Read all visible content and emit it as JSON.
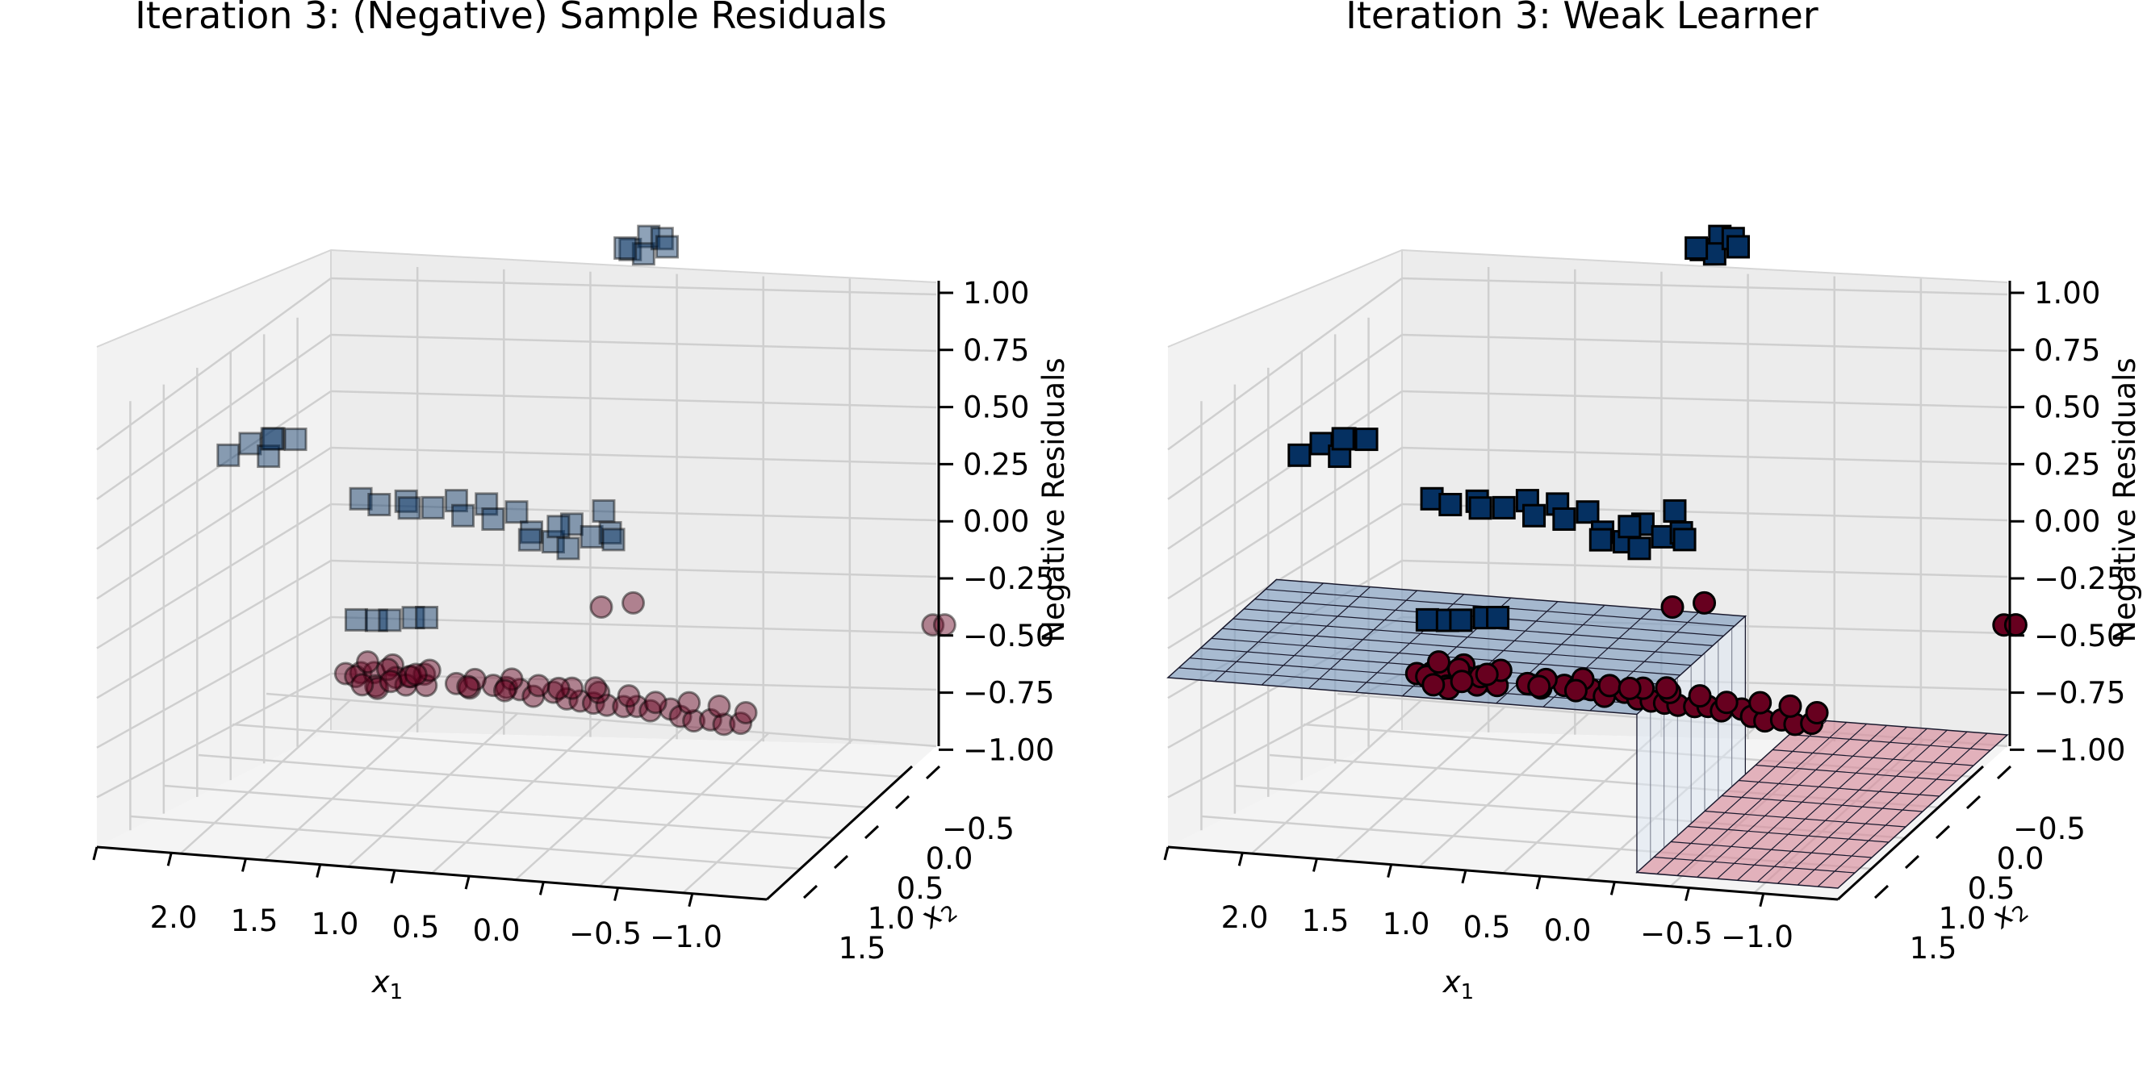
{
  "colors": {
    "negative_class": "#67001f",
    "positive_class": "#053061",
    "negative_surface": "#d98e9c",
    "positive_surface": "#7f9dbf",
    "pane": "#f2f2f2",
    "grid": "#cfcfcf"
  },
  "chart_data": [
    {
      "type": "scatter",
      "title": "Iteration 3: (Negative) Sample Residuals",
      "xlabel": "x1",
      "ylabel": "x2",
      "zlabel": "Negative Residuals",
      "xlim": [
        -1.5,
        2.5
      ],
      "ylim": [
        -1.0,
        1.5
      ],
      "zlim": [
        -1.0,
        1.0
      ],
      "x_ticks": [
        "2.0",
        "1.5",
        "1.0",
        "0.5",
        "0.0",
        "−0.5",
        "−1.0"
      ],
      "y_ticks": [
        "−0.5",
        "0.0",
        "0.5",
        "1.0",
        "1.5"
      ],
      "z_ticks": [
        "1.00",
        "0.75",
        "0.50",
        "0.25",
        "0.00",
        "−0.25",
        "−0.50",
        "−0.75",
        "−1.00"
      ],
      "transparent_markers": true,
      "series": [
        {
          "marker": "square",
          "class": "positive",
          "points": [
            [
              2.05,
              0.15,
              0.5
            ],
            [
              1.95,
              0.25,
              0.5
            ],
            [
              1.9,
              0.05,
              0.48
            ],
            [
              2.1,
              -0.05,
              0.5
            ],
            [
              1.8,
              0.2,
              0.52
            ],
            [
              2.0,
              0.35,
              0.47
            ],
            [
              1.45,
              0.3,
              0.25
            ],
            [
              1.3,
              0.2,
              0.26
            ],
            [
              1.2,
              0.35,
              0.24
            ],
            [
              1.1,
              0.15,
              0.27
            ],
            [
              1.0,
              0.25,
              0.25
            ],
            [
              0.9,
              0.35,
              0.26
            ],
            [
              0.8,
              0.2,
              0.24
            ],
            [
              0.7,
              0.3,
              0.27
            ],
            [
              0.6,
              0.15,
              0.25
            ],
            [
              0.5,
              0.25,
              0.26
            ],
            [
              0.35,
              0.1,
              0.22
            ],
            [
              0.3,
              -0.05,
              0.23
            ],
            [
              0.2,
              0.05,
              0.2
            ],
            [
              0.15,
              0.2,
              0.24
            ],
            [
              0.05,
              -0.1,
              0.22
            ],
            [
              -0.05,
              0.0,
              0.25
            ],
            [
              -0.1,
              0.15,
              0.23
            ],
            [
              -0.2,
              -0.05,
              0.26
            ],
            [
              0.0,
              0.3,
              0.28
            ],
            [
              0.25,
              0.25,
              0.21
            ],
            [
              -0.3,
              -0.05,
              1.55
            ],
            [
              -0.35,
              0.1,
              1.57
            ],
            [
              -0.4,
              -0.1,
              1.55
            ],
            [
              -0.45,
              0.05,
              1.58
            ],
            [
              -0.5,
              0.0,
              1.56
            ],
            [
              -0.25,
              0.0,
              1.54
            ],
            [
              1.7,
              0.85,
              -0.45
            ],
            [
              1.6,
              0.9,
              -0.46
            ],
            [
              1.5,
              0.85,
              -0.44
            ],
            [
              1.4,
              0.95,
              -0.45
            ],
            [
              1.3,
              0.9,
              -0.43
            ]
          ]
        },
        {
          "marker": "circle",
          "class": "negative",
          "points": [
            [
              1.5,
              0.2,
              -0.5
            ],
            [
              1.45,
              0.3,
              -0.52
            ],
            [
              1.4,
              0.1,
              -0.48
            ],
            [
              1.35,
              0.25,
              -0.5
            ],
            [
              1.3,
              0.15,
              -0.53
            ],
            [
              1.28,
              0.35,
              -0.49
            ],
            [
              1.25,
              0.05,
              -0.51
            ],
            [
              1.2,
              0.2,
              -0.5
            ],
            [
              1.15,
              0.3,
              -0.52
            ],
            [
              1.1,
              0.1,
              -0.5
            ],
            [
              1.05,
              0.25,
              -0.49
            ],
            [
              1.0,
              0.15,
              -0.51
            ],
            [
              1.35,
              0.45,
              -0.54
            ],
            [
              1.2,
              0.4,
              -0.55
            ],
            [
              1.1,
              0.45,
              -0.53
            ],
            [
              1.3,
              -0.05,
              -0.47
            ],
            [
              1.15,
              0.0,
              -0.46
            ],
            [
              1.45,
              0.4,
              -0.5
            ],
            [
              0.9,
              0.35,
              -0.55
            ],
            [
              0.8,
              0.3,
              -0.55
            ],
            [
              0.7,
              0.4,
              -0.56
            ],
            [
              0.6,
              0.35,
              -0.55
            ],
            [
              0.5,
              0.3,
              -0.54
            ],
            [
              0.4,
              0.25,
              -0.55
            ],
            [
              0.3,
              0.3,
              -0.54
            ],
            [
              0.2,
              0.25,
              -0.55
            ],
            [
              0.1,
              0.2,
              -0.54
            ],
            [
              0.0,
              0.15,
              -0.53
            ],
            [
              -0.1,
              0.1,
              -0.52
            ],
            [
              -0.2,
              0.1,
              -0.52
            ],
            [
              -0.3,
              0.05,
              -0.5
            ],
            [
              -0.4,
              0.0,
              -0.5
            ],
            [
              -0.5,
              0.05,
              -0.5
            ],
            [
              -0.6,
              -0.05,
              -0.5
            ],
            [
              -0.7,
              -0.1,
              -0.5
            ],
            [
              -0.8,
              -0.1,
              -0.49
            ],
            [
              -0.9,
              -0.15,
              -0.49
            ],
            [
              -1.0,
              -0.15,
              -0.48
            ],
            [
              0.85,
              0.5,
              -0.57
            ],
            [
              0.65,
              0.55,
              -0.57
            ],
            [
              0.45,
              0.45,
              -0.56
            ],
            [
              0.25,
              0.45,
              -0.56
            ],
            [
              0.05,
              0.35,
              -0.54
            ],
            [
              -0.15,
              0.3,
              -0.53
            ],
            [
              -0.35,
              0.2,
              -0.52
            ],
            [
              -0.55,
              0.2,
              -0.51
            ],
            [
              -0.75,
              0.15,
              -0.5
            ],
            [
              -0.95,
              0.05,
              -0.49
            ],
            [
              1.0,
              0.0,
              -0.42
            ],
            [
              0.75,
              0.15,
              -0.5
            ],
            [
              0.55,
              0.2,
              -0.52
            ],
            [
              0.35,
              0.5,
              -0.58
            ],
            [
              0.15,
              0.55,
              -0.58
            ],
            [
              0.5,
              1.5,
              -0.5
            ],
            [
              0.35,
              1.6,
              -0.5
            ],
            [
              -1.5,
              1.45,
              -0.45
            ],
            [
              -1.55,
              1.5,
              -0.46
            ]
          ]
        }
      ],
      "surfaces": []
    },
    {
      "type": "scatter",
      "title": "Iteration 3: Weak Learner",
      "xlabel": "x1",
      "ylabel": "x2",
      "zlabel": "Negative Residuals",
      "xlim": [
        -1.5,
        2.5
      ],
      "ylim": [
        -1.0,
        1.5
      ],
      "zlim": [
        -1.0,
        1.0
      ],
      "x_ticks": [
        "2.0",
        "1.5",
        "1.0",
        "0.5",
        "0.0",
        "−0.5",
        "−1.0"
      ],
      "y_ticks": [
        "−0.5",
        "0.0",
        "0.5",
        "1.0",
        "1.5"
      ],
      "z_ticks": [
        "1.00",
        "0.75",
        "0.50",
        "0.25",
        "0.00",
        "−0.25",
        "−0.50",
        "−0.75",
        "−1.00"
      ],
      "transparent_markers": false,
      "series": [
        {
          "marker": "square",
          "class": "positive",
          "points": [
            [
              2.05,
              0.15,
              0.5
            ],
            [
              1.95,
              0.25,
              0.5
            ],
            [
              1.9,
              0.05,
              0.48
            ],
            [
              2.1,
              -0.05,
              0.5
            ],
            [
              1.8,
              0.2,
              0.52
            ],
            [
              2.0,
              0.35,
              0.47
            ],
            [
              1.45,
              0.3,
              0.25
            ],
            [
              1.3,
              0.2,
              0.26
            ],
            [
              1.2,
              0.35,
              0.24
            ],
            [
              1.1,
              0.15,
              0.27
            ],
            [
              1.0,
              0.25,
              0.25
            ],
            [
              0.9,
              0.35,
              0.26
            ],
            [
              0.8,
              0.2,
              0.24
            ],
            [
              0.7,
              0.3,
              0.27
            ],
            [
              0.6,
              0.15,
              0.25
            ],
            [
              0.5,
              0.25,
              0.26
            ],
            [
              0.35,
              0.1,
              0.22
            ],
            [
              0.3,
              -0.05,
              0.23
            ],
            [
              0.2,
              0.05,
              0.2
            ],
            [
              0.15,
              0.2,
              0.24
            ],
            [
              0.05,
              -0.1,
              0.22
            ],
            [
              -0.05,
              0.0,
              0.25
            ],
            [
              -0.1,
              0.15,
              0.23
            ],
            [
              -0.2,
              -0.05,
              0.26
            ],
            [
              0.0,
              0.3,
              0.28
            ],
            [
              0.25,
              0.25,
              0.21
            ],
            [
              -0.3,
              -0.05,
              1.55
            ],
            [
              -0.35,
              0.1,
              1.57
            ],
            [
              -0.4,
              -0.1,
              1.55
            ],
            [
              -0.45,
              0.05,
              1.58
            ],
            [
              -0.5,
              0.0,
              1.56
            ],
            [
              -0.25,
              0.0,
              1.54
            ],
            [
              1.7,
              0.85,
              -0.45
            ],
            [
              1.6,
              0.9,
              -0.46
            ],
            [
              1.5,
              0.85,
              -0.44
            ],
            [
              1.4,
              0.95,
              -0.45
            ],
            [
              1.3,
              0.9,
              -0.43
            ]
          ]
        },
        {
          "marker": "circle",
          "class": "negative",
          "points": [
            [
              1.5,
              0.2,
              -0.5
            ],
            [
              1.45,
              0.3,
              -0.52
            ],
            [
              1.4,
              0.1,
              -0.48
            ],
            [
              1.35,
              0.25,
              -0.5
            ],
            [
              1.3,
              0.15,
              -0.53
            ],
            [
              1.28,
              0.35,
              -0.49
            ],
            [
              1.25,
              0.05,
              -0.51
            ],
            [
              1.2,
              0.2,
              -0.5
            ],
            [
              1.15,
              0.3,
              -0.52
            ],
            [
              1.1,
              0.1,
              -0.5
            ],
            [
              1.05,
              0.25,
              -0.49
            ],
            [
              1.0,
              0.15,
              -0.51
            ],
            [
              1.35,
              0.45,
              -0.54
            ],
            [
              1.2,
              0.4,
              -0.55
            ],
            [
              1.1,
              0.45,
              -0.53
            ],
            [
              1.3,
              -0.05,
              -0.47
            ],
            [
              1.15,
              0.0,
              -0.46
            ],
            [
              1.45,
              0.4,
              -0.5
            ],
            [
              0.9,
              0.35,
              -0.55
            ],
            [
              0.8,
              0.3,
              -0.55
            ],
            [
              0.7,
              0.4,
              -0.56
            ],
            [
              0.6,
              0.35,
              -0.55
            ],
            [
              0.5,
              0.3,
              -0.54
            ],
            [
              0.4,
              0.25,
              -0.55
            ],
            [
              0.3,
              0.3,
              -0.54
            ],
            [
              0.2,
              0.25,
              -0.55
            ],
            [
              0.1,
              0.2,
              -0.54
            ],
            [
              0.0,
              0.15,
              -0.53
            ],
            [
              -0.1,
              0.1,
              -0.52
            ],
            [
              -0.2,
              0.1,
              -0.52
            ],
            [
              -0.3,
              0.05,
              -0.5
            ],
            [
              -0.4,
              0.0,
              -0.5
            ],
            [
              -0.5,
              0.05,
              -0.5
            ],
            [
              -0.6,
              -0.05,
              -0.5
            ],
            [
              -0.7,
              -0.1,
              -0.5
            ],
            [
              -0.8,
              -0.1,
              -0.49
            ],
            [
              -0.9,
              -0.15,
              -0.49
            ],
            [
              -1.0,
              -0.15,
              -0.48
            ],
            [
              0.85,
              0.5,
              -0.57
            ],
            [
              0.65,
              0.55,
              -0.57
            ],
            [
              0.45,
              0.45,
              -0.56
            ],
            [
              0.25,
              0.45,
              -0.56
            ],
            [
              0.05,
              0.35,
              -0.54
            ],
            [
              -0.15,
              0.3,
              -0.53
            ],
            [
              -0.35,
              0.2,
              -0.52
            ],
            [
              -0.55,
              0.2,
              -0.51
            ],
            [
              -0.75,
              0.15,
              -0.5
            ],
            [
              -0.95,
              0.05,
              -0.49
            ],
            [
              1.0,
              0.0,
              -0.42
            ],
            [
              0.75,
              0.15,
              -0.5
            ],
            [
              0.55,
              0.2,
              -0.52
            ],
            [
              0.35,
              0.5,
              -0.58
            ],
            [
              0.15,
              0.55,
              -0.58
            ],
            [
              0.5,
              1.5,
              -0.5
            ],
            [
              0.35,
              1.6,
              -0.5
            ],
            [
              -1.5,
              1.45,
              -0.45
            ],
            [
              -1.55,
              1.5,
              -0.46
            ]
          ]
        }
      ],
      "surfaces": [
        {
          "class": "positive",
          "z": -0.25,
          "x_range": [
            -0.3,
            2.5
          ],
          "y_range": [
            -1.0,
            0.6
          ]
        },
        {
          "class": "negative",
          "z": -0.95,
          "x_range": [
            -1.5,
            -0.3
          ],
          "y_range": [
            -1.0,
            1.5
          ]
        }
      ]
    }
  ]
}
